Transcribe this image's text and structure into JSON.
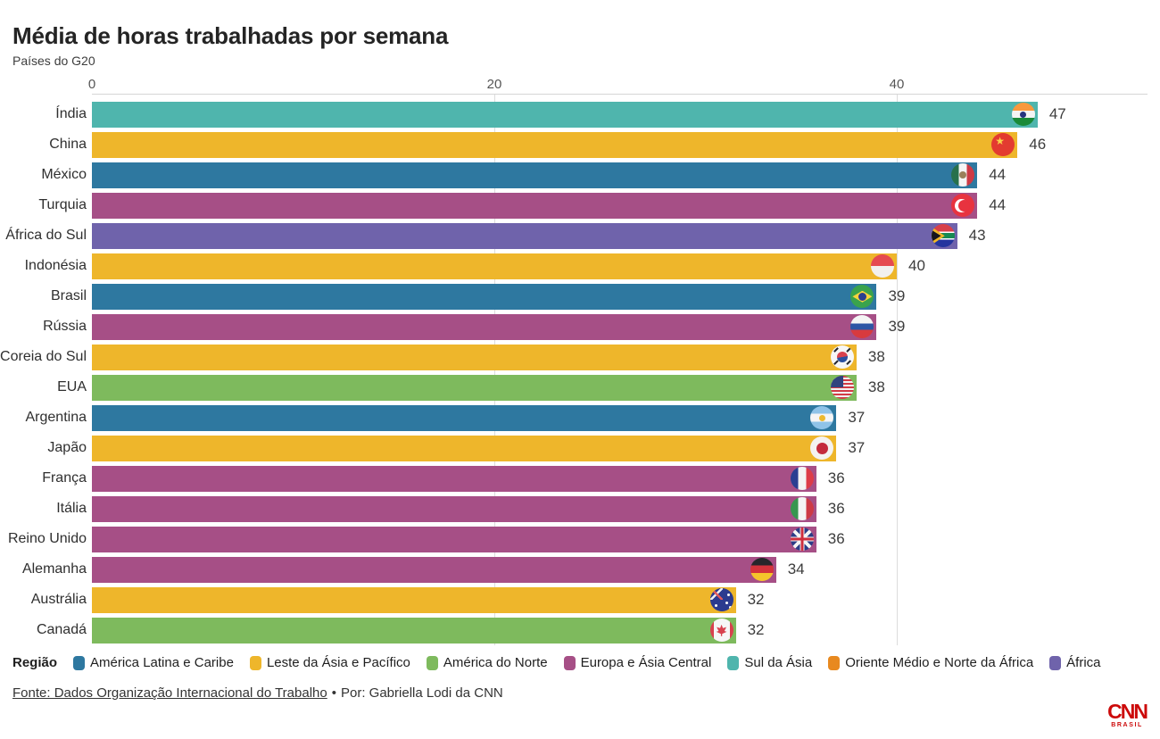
{
  "header": {
    "title": "Média de horas trabalhadas por semana",
    "subtitle": "Países do G20"
  },
  "chart_data": {
    "type": "bar",
    "orientation": "horizontal",
    "title": "Média de horas trabalhadas por semana",
    "subtitle": "Países do G20",
    "xlabel": "",
    "ylabel": "",
    "x_axis": {
      "tick_labels": [
        "0",
        "20",
        "40"
      ],
      "ticks": [
        0,
        20,
        40
      ],
      "gridlines": [
        20,
        40
      ],
      "range": [
        0,
        52
      ]
    },
    "grid": "vertical-light",
    "rows": [
      {
        "country": "Índia",
        "value": 47,
        "region": "Sul da Ásia",
        "flag": "in"
      },
      {
        "country": "China",
        "value": 46,
        "region": "Leste da Ásia e Pacífico",
        "flag": "cn"
      },
      {
        "country": "México",
        "value": 44,
        "region": "América Latina e Caribe",
        "flag": "mx"
      },
      {
        "country": "Turquia",
        "value": 44,
        "region": "Europa e Ásia Central",
        "flag": "tr"
      },
      {
        "country": "África do Sul",
        "value": 43,
        "region": "África",
        "flag": "za"
      },
      {
        "country": "Indonésia",
        "value": 40,
        "region": "Leste da Ásia e Pacífico",
        "flag": "id"
      },
      {
        "country": "Brasil",
        "value": 39,
        "region": "América Latina e Caribe",
        "flag": "br"
      },
      {
        "country": "Rússia",
        "value": 39,
        "region": "Europa e Ásia Central",
        "flag": "ru"
      },
      {
        "country": "Coreia do Sul",
        "value": 38,
        "region": "Leste da Ásia e Pacífico",
        "flag": "kr"
      },
      {
        "country": "EUA",
        "value": 38,
        "region": "América do Norte",
        "flag": "us"
      },
      {
        "country": "Argentina",
        "value": 37,
        "region": "América Latina e Caribe",
        "flag": "ar"
      },
      {
        "country": "Japão",
        "value": 37,
        "region": "Leste da Ásia e Pacífico",
        "flag": "jp"
      },
      {
        "country": "França",
        "value": 36,
        "region": "Europa e Ásia Central",
        "flag": "fr"
      },
      {
        "country": "Itália",
        "value": 36,
        "region": "Europa e Ásia Central",
        "flag": "it"
      },
      {
        "country": "Reino Unido",
        "value": 36,
        "region": "Europa e Ásia Central",
        "flag": "gb"
      },
      {
        "country": "Alemanha",
        "value": 34,
        "region": "Europa e Ásia Central",
        "flag": "de"
      },
      {
        "country": "Austrália",
        "value": 32,
        "region": "Leste da Ásia e Pacífico",
        "flag": "au"
      },
      {
        "country": "Canadá",
        "value": 32,
        "region": "América do Norte",
        "flag": "ca"
      }
    ],
    "region_colors": {
      "América Latina e Caribe": "#2e78a0",
      "Leste da Ásia e Pacífico": "#eeb62b",
      "América do Norte": "#7eba5d",
      "Europa e Ásia Central": "#a64f86",
      "Sul da Ásia": "#4fb5ad",
      "Oriente Médio e Norte da África": "#e8891f",
      "África": "#6f63ab"
    }
  },
  "legend": {
    "title": "Região",
    "items": [
      {
        "label": "América Latina e Caribe",
        "color": "#2e78a0"
      },
      {
        "label": "Leste da Ásia e Pacífico",
        "color": "#eeb62b"
      },
      {
        "label": "América do Norte",
        "color": "#7eba5d"
      },
      {
        "label": "Europa e Ásia Central",
        "color": "#a64f86"
      },
      {
        "label": "Sul da Ásia",
        "color": "#4fb5ad"
      },
      {
        "label": "Oriente Médio e Norte da África",
        "color": "#e8891f"
      },
      {
        "label": "África",
        "color": "#6f63ab"
      }
    ]
  },
  "footer": {
    "source": "Fonte: Dados Organização Internacional do Trabalho",
    "separator": "•",
    "byline": "Por: Gabriella Lodi da CNN"
  },
  "branding": {
    "logo_text": "CNN",
    "logo_sub": "BRASIL",
    "color": "#cc0a0a"
  }
}
